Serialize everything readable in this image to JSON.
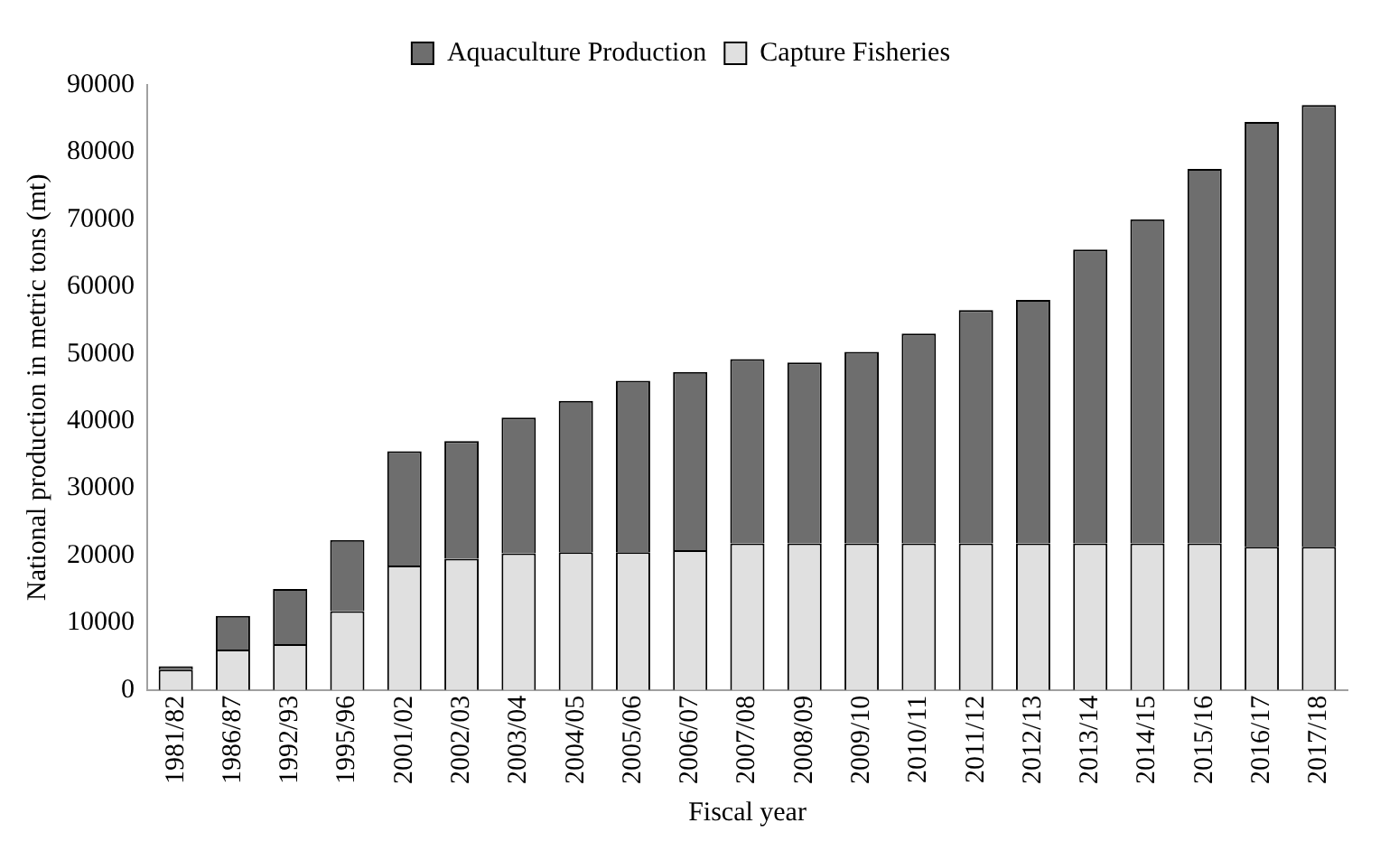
{
  "chart_data": {
    "type": "bar",
    "stacked": true,
    "xlabel": "Fiscal year",
    "ylabel": "National production in metric tons (mt)",
    "categories": [
      "1981/82",
      "1986/87",
      "1992/93",
      "1995/96",
      "2001/02",
      "2002/03",
      "2003/04",
      "2004/05",
      "2005/06",
      "2006/07",
      "2007/08",
      "2008/09",
      "2009/10",
      "2010/11",
      "2011/12",
      "2012/13",
      "2013/14",
      "2014/15",
      "2015/16",
      "2016/17",
      "2017/18"
    ],
    "series": [
      {
        "name": "Capture Fisheries",
        "color": "#e0e0e0",
        "values": [
          3000,
          6000,
          6800,
          11700,
          18500,
          19500,
          20300,
          20500,
          20500,
          20800,
          21800,
          21800,
          21800,
          21800,
          21800,
          21800,
          21800,
          21800,
          21800,
          21300,
          21300
        ]
      },
      {
        "name": "Aquaculture Production",
        "color": "#6e6e6e",
        "values": [
          500,
          5000,
          8200,
          10600,
          17000,
          17500,
          20200,
          22500,
          25500,
          26500,
          27400,
          26900,
          28500,
          31200,
          34700,
          36200,
          43700,
          48200,
          55700,
          63200,
          65700
        ]
      }
    ],
    "ylim": [
      0,
      90000
    ],
    "yticks": [
      0,
      10000,
      20000,
      30000,
      40000,
      50000,
      60000,
      70000,
      80000,
      90000
    ],
    "grid": false,
    "legend": "top"
  }
}
